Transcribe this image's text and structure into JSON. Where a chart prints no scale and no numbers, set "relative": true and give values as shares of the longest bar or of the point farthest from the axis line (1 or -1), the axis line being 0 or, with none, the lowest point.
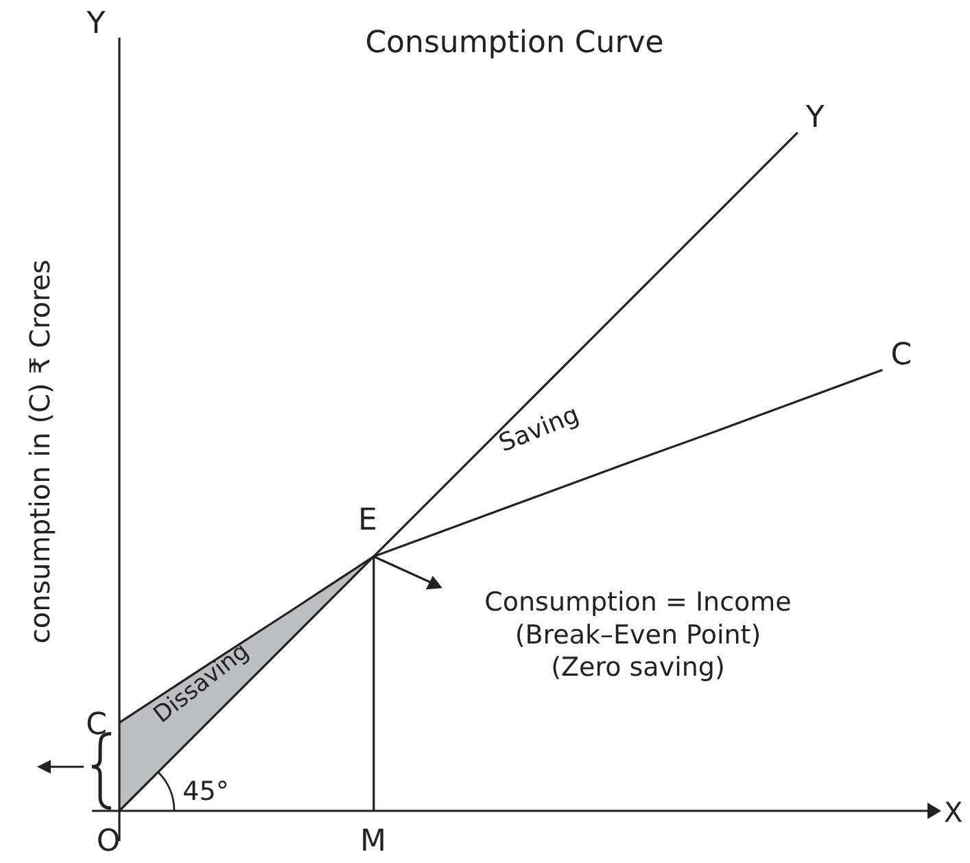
{
  "chart_data": {
    "type": "line",
    "relative": true,
    "title": "Consumption Curve",
    "xlabel": "X",
    "ylabel": "consumption in (C) ₹ Crores",
    "categories": [
      null,
      null,
      null,
      null,
      null,
      null,
      null,
      null,
      null,
      null
    ],
    "series": [
      {
        "name": "Y",
        "color": "#222222",
        "values": [
          0,
          0.125,
          0.25,
          0.375,
          0.5,
          0.625,
          0.75,
          0.875,
          1.0,
          null
        ]
      },
      {
        "name": "C",
        "color": "#222222",
        "values": [
          0.13,
          0.212,
          0.293,
          0.375,
          0.421,
          0.467,
          0.513,
          0.558,
          0.604,
          0.65
        ]
      }
    ],
    "annotations": [
      "O",
      "M",
      "C",
      "E",
      "Y",
      "Dissaving",
      "Saving",
      "45°",
      "Consumption = Income\n(Break–Even Point)\n(Zero saving)"
    ],
    "legend": false,
    "marker": "none",
    "line_style": "solid"
  }
}
